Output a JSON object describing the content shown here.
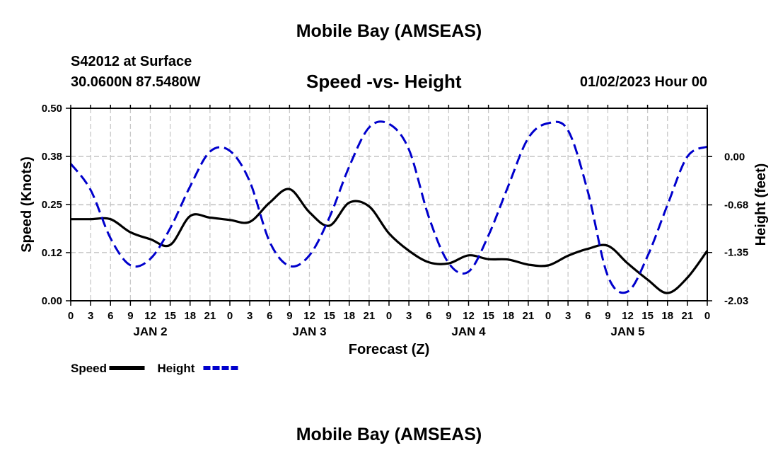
{
  "header": {
    "title": "Mobile Bay (AMSEAS)",
    "station": "S42012 at Surface",
    "coordinates": "30.0600N  87.5480W",
    "subtitle": "Speed -vs- Height",
    "datetime": "01/02/2023 Hour 00"
  },
  "footer": {
    "title": "Mobile Bay (AMSEAS)"
  },
  "chart_data": {
    "type": "line",
    "title": "Speed -vs- Height",
    "xlabel": "Forecast (Z)",
    "ylabel_left": "Speed (Knots)",
    "ylabel_right": "Height (feet)",
    "x_range_hours": [
      0,
      96
    ],
    "x_tick_step_hours": 3,
    "x_tick_labels": [
      "0",
      "3",
      "6",
      "9",
      "12",
      "15",
      "18",
      "21",
      "0",
      "3",
      "6",
      "9",
      "12",
      "15",
      "18",
      "21",
      "0",
      "3",
      "6",
      "9",
      "12",
      "15",
      "18",
      "21",
      "0",
      "3",
      "6",
      "9",
      "12",
      "15",
      "18",
      "21",
      "0"
    ],
    "day_labels": [
      {
        "label": "JAN 2",
        "hour": 12
      },
      {
        "label": "JAN 3",
        "hour": 36
      },
      {
        "label": "JAN 4",
        "hour": 60
      },
      {
        "label": "JAN 5",
        "hour": 84
      }
    ],
    "ylim_left": [
      0,
      0.5
    ],
    "yticks_left": [
      {
        "value": 0.0,
        "label": "0.00"
      },
      {
        "value": 0.125,
        "label": "0.12"
      },
      {
        "value": 0.25,
        "label": "0.25"
      },
      {
        "value": 0.375,
        "label": "0.38"
      },
      {
        "value": 0.5,
        "label": "0.50"
      }
    ],
    "ylim_right": [
      -2.03,
      0.68
    ],
    "yticks_right": [
      {
        "value": 0.0,
        "label": "0.00"
      },
      {
        "value": -0.68,
        "label": "-0.68"
      },
      {
        "value": -1.35,
        "label": "-1.35"
      },
      {
        "value": -2.03,
        "label": "-2.03"
      }
    ],
    "legend": [
      {
        "name": "Speed",
        "color": "#000000",
        "style": "solid"
      },
      {
        "name": "Height",
        "color": "#0000cc",
        "style": "dashed"
      }
    ],
    "legend_position": "bottom-left",
    "series": [
      {
        "name": "Speed",
        "axis": "left",
        "color": "#000000",
        "style": "solid",
        "x": [
          0,
          3,
          6,
          9,
          12,
          15,
          18,
          21,
          24,
          27,
          30,
          33,
          36,
          39,
          42,
          45,
          48,
          51,
          54,
          57,
          60,
          63,
          66,
          69,
          72,
          75,
          78,
          81,
          84,
          87,
          90,
          93,
          96
        ],
        "y": [
          0.212,
          0.212,
          0.212,
          0.178,
          0.16,
          0.145,
          0.22,
          0.216,
          0.21,
          0.205,
          0.255,
          0.29,
          0.23,
          0.195,
          0.255,
          0.245,
          0.175,
          0.13,
          0.1,
          0.097,
          0.118,
          0.108,
          0.107,
          0.094,
          0.092,
          0.117,
          0.135,
          0.143,
          0.097,
          0.055,
          0.02,
          0.06,
          0.13
        ]
      },
      {
        "name": "Height",
        "axis": "right",
        "color": "#0000cc",
        "style": "dashed",
        "x": [
          0,
          3,
          6,
          9,
          12,
          15,
          18,
          21,
          24,
          27,
          30,
          33,
          36,
          39,
          42,
          45,
          48,
          51,
          54,
          57,
          60,
          63,
          66,
          69,
          72,
          75,
          78,
          81,
          84,
          87,
          90,
          93,
          96
        ],
        "y": [
          -0.1,
          -0.47,
          -1.15,
          -1.53,
          -1.44,
          -1.01,
          -0.42,
          0.07,
          0.08,
          -0.35,
          -1.2,
          -1.54,
          -1.39,
          -0.86,
          -0.14,
          0.41,
          0.46,
          0.1,
          -0.85,
          -1.5,
          -1.62,
          -1.11,
          -0.41,
          0.26,
          0.47,
          0.37,
          -0.5,
          -1.68,
          -1.9,
          -1.4,
          -0.68,
          0.0,
          0.14
        ]
      }
    ]
  }
}
